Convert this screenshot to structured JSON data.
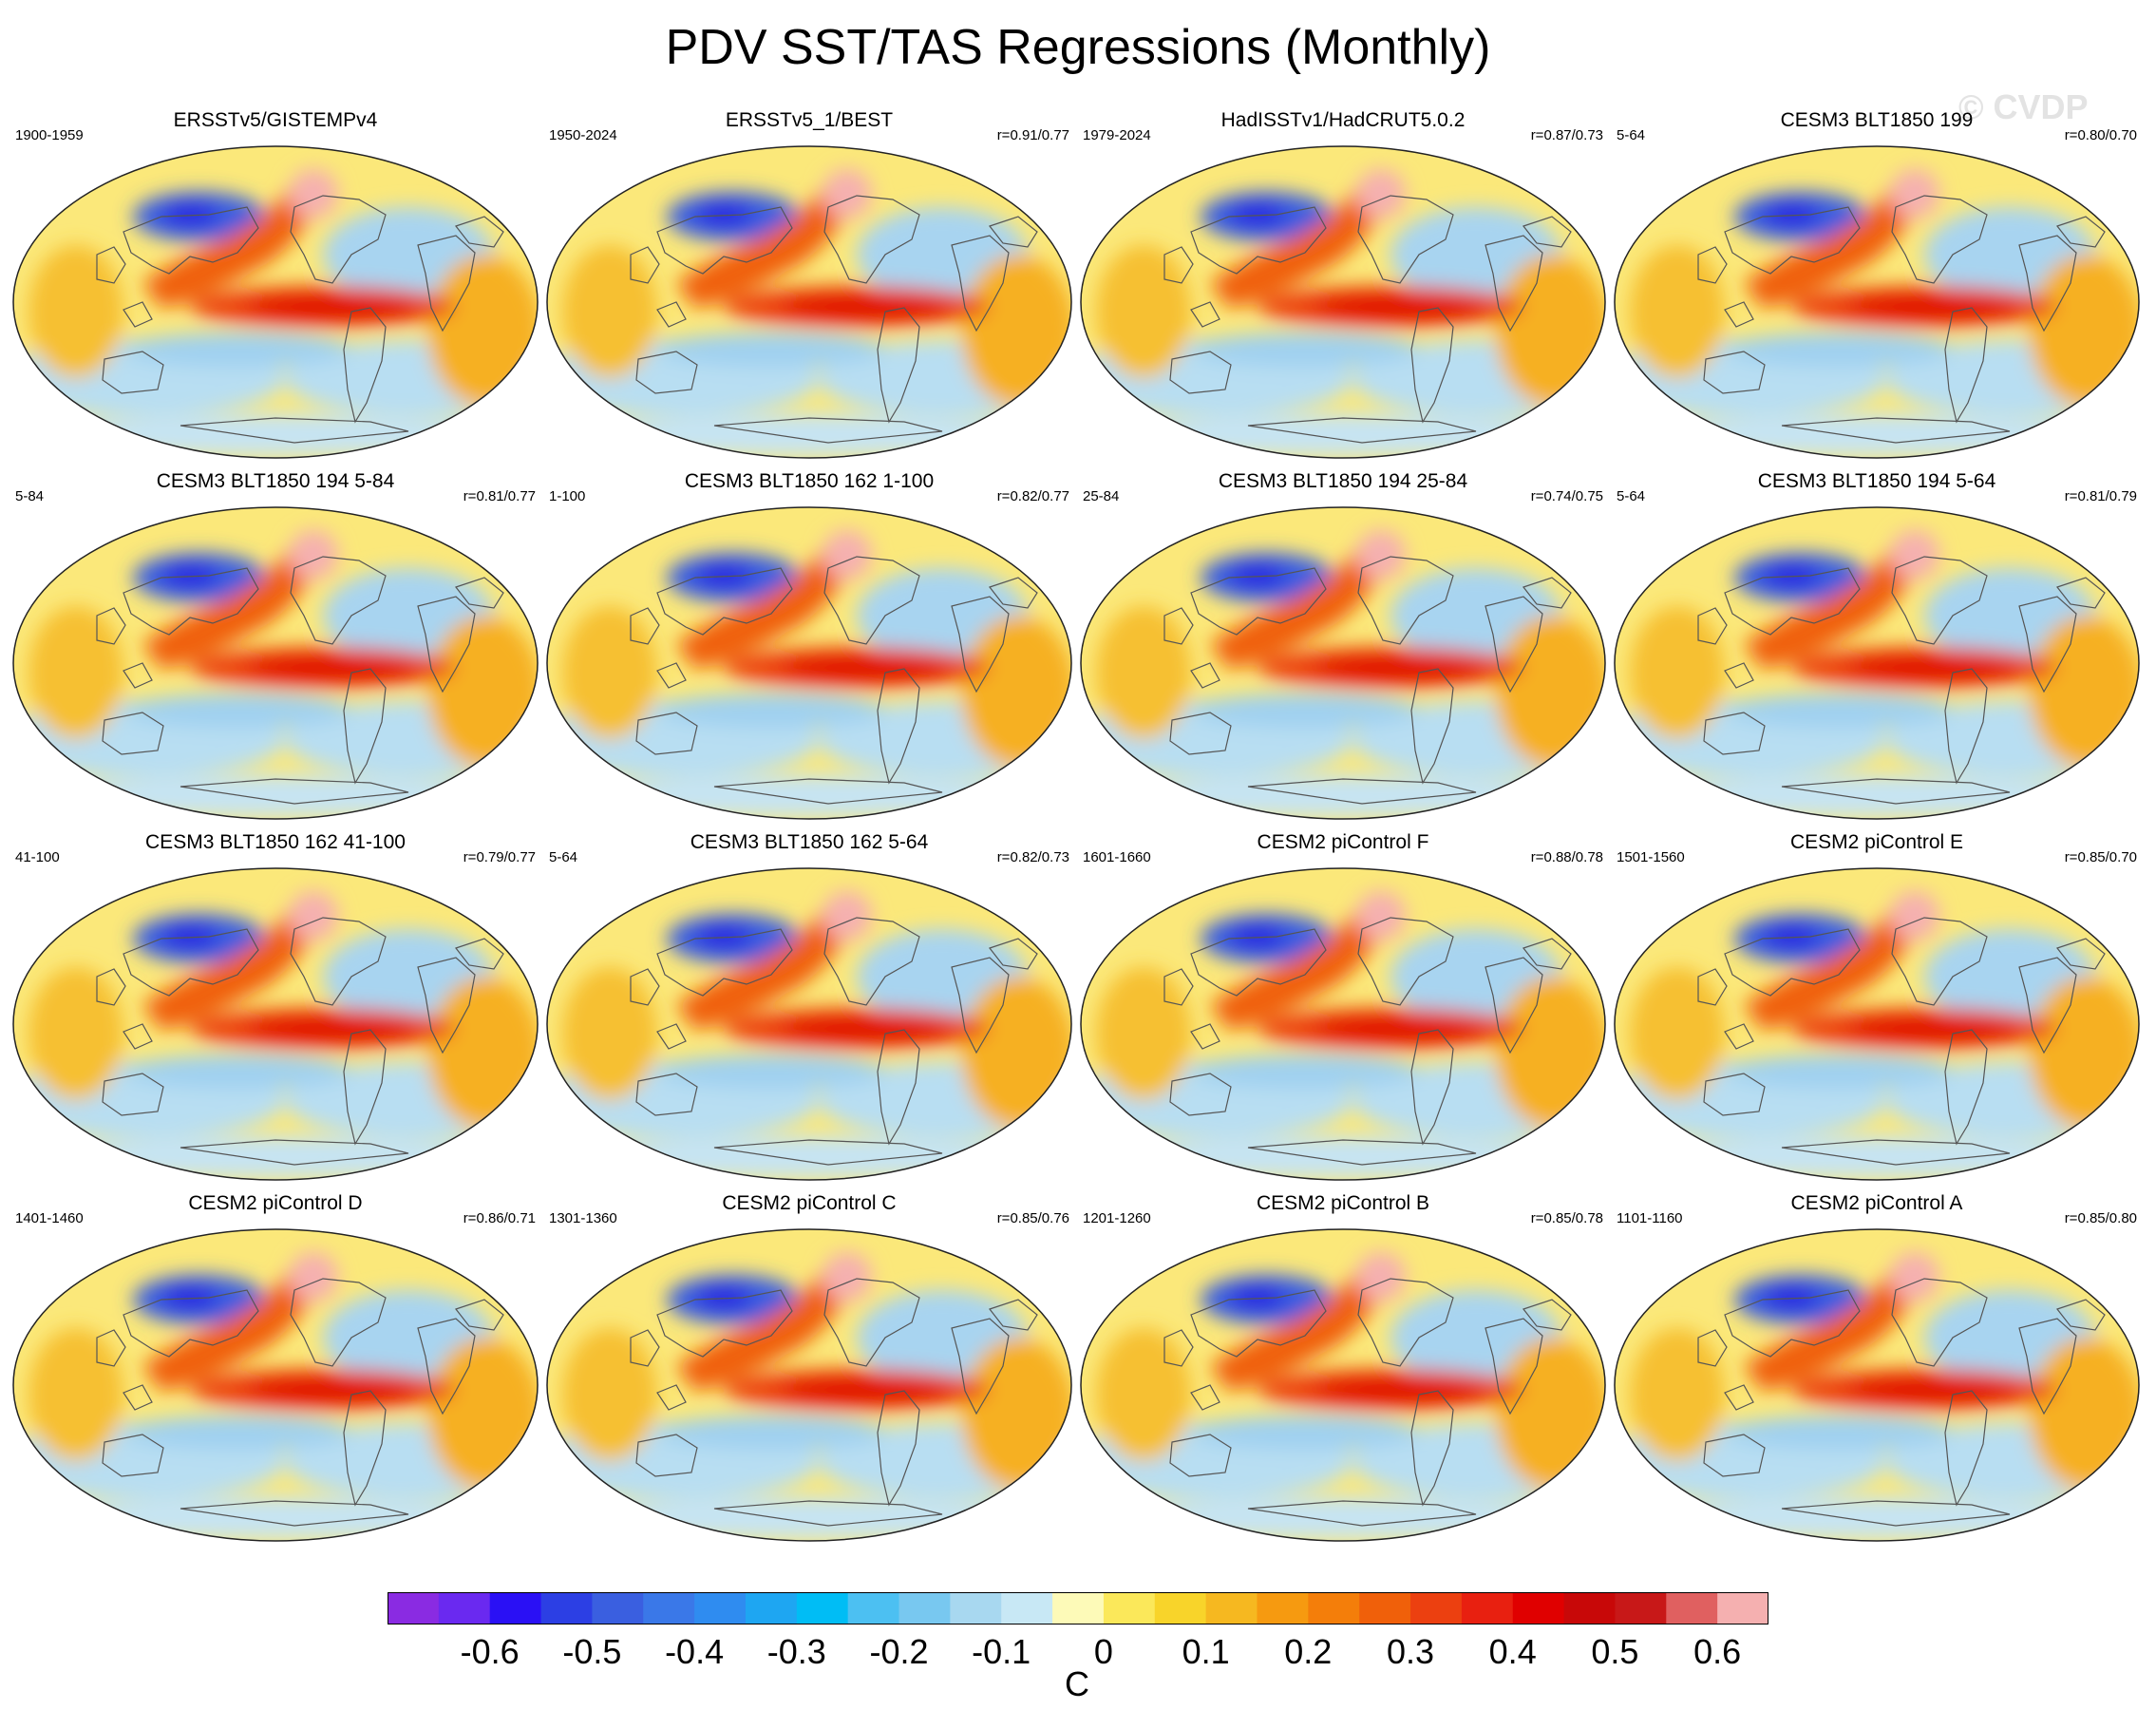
{
  "title": "PDV SST/TAS Regressions (Monthly)",
  "watermark": "© CVDP",
  "panels": [
    {
      "title": "ERSSTv5/GISTEMPv4",
      "period": "1900-1959",
      "corr": ""
    },
    {
      "title": "ERSSTv5_1/BEST",
      "period": "1950-2024",
      "corr": "r=0.91/0.77"
    },
    {
      "title": "HadISSTv1/HadCRUT5.0.2",
      "period": "1979-2024",
      "corr": "r=0.87/0.73"
    },
    {
      "title": "CESM3 BLT1850 199",
      "period": "5-64",
      "corr": "r=0.80/0.70"
    },
    {
      "title": "CESM3 BLT1850 194 5-84",
      "period": "5-84",
      "corr": "r=0.81/0.77"
    },
    {
      "title": "CESM3 BLT1850 162 1-100",
      "period": "1-100",
      "corr": "r=0.82/0.77"
    },
    {
      "title": "CESM3 BLT1850 194 25-84",
      "period": "25-84",
      "corr": "r=0.74/0.75"
    },
    {
      "title": "CESM3 BLT1850 194 5-64",
      "period": "5-64",
      "corr": "r=0.81/0.79"
    },
    {
      "title": "CESM3 BLT1850 162 41-100",
      "period": "41-100",
      "corr": "r=0.79/0.77"
    },
    {
      "title": "CESM3 BLT1850 162 5-64",
      "period": "5-64",
      "corr": "r=0.82/0.73"
    },
    {
      "title": "CESM2 piControl F",
      "period": "1601-1660",
      "corr": "r=0.88/0.78"
    },
    {
      "title": "CESM2 piControl E",
      "period": "1501-1560",
      "corr": "r=0.85/0.70"
    },
    {
      "title": "CESM2 piControl D",
      "period": "1401-1460",
      "corr": "r=0.86/0.71"
    },
    {
      "title": "CESM2 piControl C",
      "period": "1301-1360",
      "corr": "r=0.85/0.76"
    },
    {
      "title": "CESM2 piControl B",
      "period": "1201-1260",
      "corr": "r=0.85/0.78"
    },
    {
      "title": "CESM2 piControl A",
      "period": "1101-1160",
      "corr": "r=0.85/0.80"
    }
  ],
  "colorbar": {
    "colors": [
      "#8a2be2",
      "#6a29f0",
      "#2a10f5",
      "#2c3fe4",
      "#3a5fe0",
      "#3a78e8",
      "#2f8cf0",
      "#1ea6f2",
      "#00bdf5",
      "#4cc0f2",
      "#78c8f0",
      "#a8d8f0",
      "#c8e8f5",
      "#fdfab8",
      "#fbe85a",
      "#f8d42a",
      "#f6b820",
      "#f69a10",
      "#f47e0a",
      "#f0600a",
      "#ec4010",
      "#e82010",
      "#e00000",
      "#c80808",
      "#c81818",
      "#e06060",
      "#f5b0b0"
    ],
    "tick_labels": [
      "-0.6",
      "-0.5",
      "-0.4",
      "-0.3",
      "-0.2",
      "-0.1",
      "0",
      "0.1",
      "0.2",
      "0.3",
      "0.4",
      "0.5",
      "0.6"
    ],
    "unit": "C"
  }
}
